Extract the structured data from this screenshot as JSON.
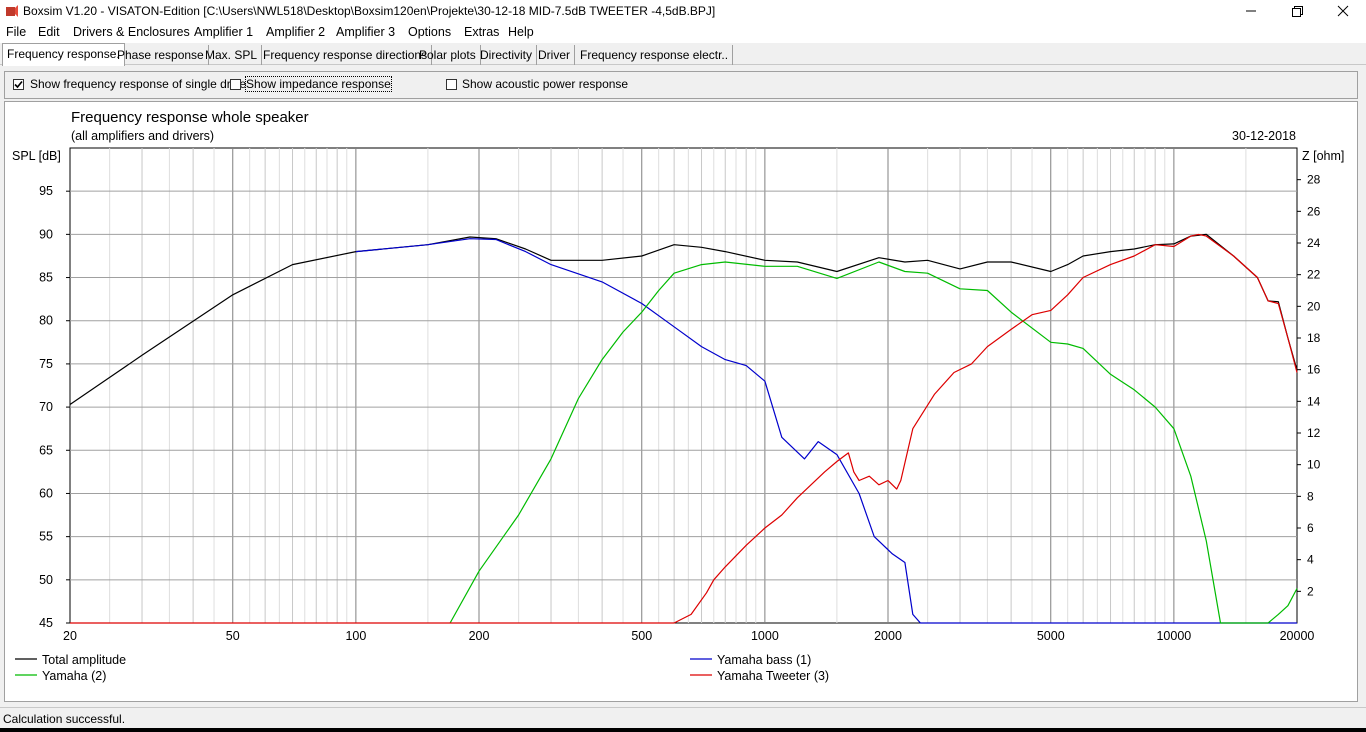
{
  "window": {
    "title": "Boxsim V1.20 - VISATON-Edition [C:\\Users\\NWL518\\Desktop\\Boxsim120en\\Projekte\\30-12-18 MID-7.5dB TWEETER -4,5dB.BPJ]",
    "minimize_icon": "minimize-icon",
    "maximize_icon": "restore-icon",
    "close_icon": "close-icon"
  },
  "menu": [
    "File",
    "Edit",
    "Drivers & Enclosures",
    "Amplifier 1",
    "Amplifier 2",
    "Amplifier 3",
    "Options",
    "Extras",
    "Help"
  ],
  "tabs": [
    "Frequency response.",
    "Phase response",
    "Max. SPL",
    "Frequency response directions",
    "Polar plots",
    "Directivity",
    "Driver",
    "Frequency response electr.."
  ],
  "options": {
    "show_single_drive": {
      "label": "Show frequency response of single drive",
      "checked": true
    },
    "show_impedance": {
      "label": "Show impedance response",
      "checked": false
    },
    "show_acoustic_power": {
      "label": "Show acoustic power response",
      "checked": false
    }
  },
  "status": "Calculation successful.",
  "chart_data": {
    "type": "line",
    "title": "Frequency response whole speaker",
    "subtitle": "(all amplifiers and drivers)",
    "date": "30-12-2018",
    "ylabel": "SPL [dB]",
    "ylabel_right": "Z [ohm]",
    "xscale": "log",
    "xlim": [
      20,
      20000
    ],
    "ylim": [
      45,
      100
    ],
    "ylim_right": [
      0,
      30
    ],
    "x_ticks": [
      "20",
      "50",
      "100",
      "200",
      "500",
      "1000",
      "2000",
      "5000",
      "10000",
      "20000"
    ],
    "y_ticks": [
      "45",
      "50",
      "55",
      "60",
      "65",
      "70",
      "75",
      "80",
      "85",
      "90",
      "95"
    ],
    "y_right_ticks": [
      "2",
      "4",
      "6",
      "8",
      "10",
      "12",
      "14",
      "16",
      "18",
      "20",
      "22",
      "24",
      "26",
      "28"
    ],
    "grid": true,
    "legend_position": "bottom",
    "series": [
      {
        "name": "Total amplitude",
        "color": "#000000",
        "dashed": false,
        "x": [
          20,
          30,
          50,
          70,
          100,
          150,
          190,
          220,
          260,
          300,
          400,
          500,
          600,
          700,
          800,
          1000,
          1200,
          1500,
          1900,
          2200,
          2500,
          3000,
          3500,
          4000,
          5000,
          5500,
          6000,
          7000,
          8000,
          9000,
          10000,
          11000,
          12000,
          14000,
          16000,
          17000,
          18000,
          19000,
          20000
        ],
        "y": [
          70.3,
          76,
          83,
          86.5,
          88,
          88.8,
          89.7,
          89.5,
          88.3,
          87,
          87,
          87.5,
          88.8,
          88.5,
          88,
          87,
          86.8,
          85.7,
          87.3,
          86.8,
          87,
          86,
          86.8,
          86.8,
          85.7,
          86.5,
          87.5,
          88,
          88.3,
          88.8,
          88.9,
          89.8,
          90,
          87.5,
          85,
          82.3,
          82.2,
          78,
          74.3
        ]
      },
      {
        "name": "Yamaha bass (1)",
        "color": "#0000cc",
        "dashed": false,
        "x": [
          100,
          150,
          190,
          220,
          260,
          300,
          400,
          500,
          600,
          700,
          800,
          900,
          1000,
          1100,
          1250,
          1350,
          1500,
          1700,
          1850,
          2050,
          2200,
          2300,
          2400,
          2500,
          3000,
          20000
        ],
        "y": [
          88,
          88.8,
          89.5,
          89.4,
          88,
          86.5,
          84.5,
          82,
          79.3,
          77,
          75.5,
          74.8,
          73,
          66.5,
          64,
          66,
          64.5,
          60,
          55,
          53,
          52,
          46,
          45,
          45,
          45,
          45
        ]
      },
      {
        "name": "Yamaha (2)",
        "color": "#00bb00",
        "dashed": false,
        "x": [
          170,
          200,
          250,
          300,
          350,
          400,
          450,
          500,
          550,
          600,
          700,
          800,
          1000,
          1200,
          1500,
          1900,
          2200,
          2500,
          3000,
          3500,
          4000,
          5000,
          5500,
          6000,
          7000,
          8000,
          9000,
          10000,
          11000,
          12000,
          13000,
          16000,
          17000,
          18000,
          19000,
          20000
        ],
        "y": [
          45,
          51,
          57.5,
          64,
          71,
          75.5,
          78.7,
          81,
          83.5,
          85.5,
          86.5,
          86.8,
          86.3,
          86.3,
          84.9,
          86.8,
          85.7,
          85.5,
          83.7,
          83.5,
          81,
          77.5,
          77.3,
          76.8,
          73.8,
          72,
          70,
          67.5,
          62,
          54.5,
          45,
          45,
          45,
          46,
          47,
          49
        ]
      },
      {
        "name": "Yamaha Tweeter (3)",
        "color": "#dd0000",
        "dashed": false,
        "x": [
          20,
          100,
          300,
          600,
          660,
          720,
          750,
          800,
          900,
          1000,
          1100,
          1200,
          1400,
          1500,
          1600,
          1650,
          1700,
          1800,
          1900,
          2000,
          2100,
          2150,
          2300,
          2600,
          2900,
          3200,
          3500,
          4000,
          4500,
          5000,
          5500,
          6000,
          7000,
          8000,
          9000,
          10000,
          11000,
          11500,
          12000,
          14000,
          16000,
          17000,
          18000,
          19000,
          20000
        ],
        "y": [
          45,
          45,
          45,
          45,
          46,
          48.5,
          50,
          51.5,
          54,
          56,
          57.5,
          59.5,
          62.5,
          63.7,
          64.7,
          62.5,
          61.5,
          62,
          61,
          61.5,
          60.5,
          61.5,
          67.5,
          71.5,
          74,
          75,
          77,
          79,
          80.7,
          81.2,
          83,
          85,
          86.5,
          87.5,
          88.8,
          88.6,
          89.8,
          90,
          89.8,
          87.5,
          85,
          82.3,
          82,
          78,
          74
        ]
      }
    ],
    "legend": [
      "Total amplitude",
      "Yamaha bass (1)",
      "Yamaha (2)",
      "Yamaha Tweeter (3)"
    ]
  }
}
